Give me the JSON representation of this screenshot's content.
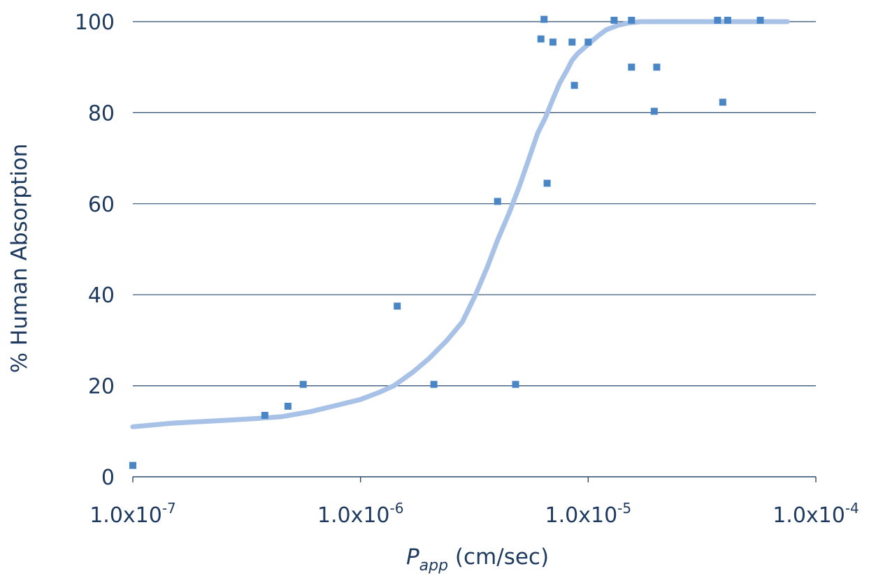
{
  "chart_data": {
    "type": "scatter",
    "title": "",
    "xlabel": {
      "main": "P",
      "subscript": "app",
      "unit": " (cm/sec)"
    },
    "ylabel": "% Human Absorption",
    "x_scale": "log",
    "xlim": [
      1e-07,
      0.0001
    ],
    "ylim": [
      0,
      100
    ],
    "grid": "horizontal",
    "x_ticks": [
      {
        "value": 1e-07,
        "mantissa": "1.0x10",
        "exponent": "-7"
      },
      {
        "value": 1e-06,
        "mantissa": "1.0x10",
        "exponent": "-6"
      },
      {
        "value": 1e-05,
        "mantissa": "1.0x10",
        "exponent": "-5"
      },
      {
        "value": 0.0001,
        "mantissa": "1.0x10",
        "exponent": "-4"
      }
    ],
    "y_ticks": [
      {
        "value": 0,
        "label": "0"
      },
      {
        "value": 20,
        "label": "20"
      },
      {
        "value": 40,
        "label": "40"
      },
      {
        "value": 60,
        "label": "60"
      },
      {
        "value": 80,
        "label": "80"
      },
      {
        "value": 100,
        "label": "100"
      }
    ],
    "colors": {
      "points": "#4a86c5",
      "curve": "#a8c1e6",
      "grid": "#2b4a6e",
      "text": "#1f3a5f"
    },
    "series": [
      {
        "kind": "points",
        "x": [
          1e-07,
          3.8e-07,
          4.8e-07,
          5.6e-07,
          1.45e-06,
          2.1e-06,
          4e-06,
          4.8e-06,
          6.2e-06,
          6.4e-06,
          6.6e-06,
          7e-06,
          8.5e-06,
          8.7e-06,
          1e-05,
          1.3e-05,
          1.55e-05,
          1.55e-05,
          1.95e-05,
          2e-05,
          3.7e-05,
          3.9e-05,
          4.1e-05,
          5.7e-05
        ],
        "y": [
          2.5,
          13.5,
          15.5,
          20.3,
          37.5,
          20.3,
          60.5,
          20.3,
          96.2,
          100.5,
          64.5,
          95.5,
          95.5,
          86,
          95.5,
          100.3,
          90,
          100.3,
          80.3,
          90,
          100.3,
          82.3,
          100.3,
          100.3
        ]
      },
      {
        "kind": "fit",
        "x": [
          1e-07,
          1.5e-07,
          2.5e-07,
          3.5e-07,
          4.5e-07,
          6e-07,
          8e-07,
          1e-06,
          1.2e-06,
          1.4e-06,
          1.7e-06,
          2e-06,
          2.4e-06,
          2.8e-06,
          3.2e-06,
          3.6e-06,
          4e-06,
          4.5e-06,
          5e-06,
          5.5e-06,
          6e-06,
          6.5e-06,
          7e-06,
          7.5e-06,
          8e-06,
          8.5e-06,
          9e-06,
          1e-05,
          1.1e-05,
          1.2e-05,
          1.35e-05,
          1.5e-05,
          1.7e-05,
          2e-05,
          3e-05,
          5e-05,
          7.5e-05
        ],
        "y": [
          11,
          11.8,
          12.4,
          12.8,
          13.2,
          14.3,
          15.8,
          17,
          18.5,
          20,
          23,
          26,
          30,
          34,
          40,
          46,
          52,
          58,
          64,
          70,
          75.5,
          79,
          83,
          86.5,
          89,
          91.5,
          93,
          95,
          96.8,
          98.2,
          99.2,
          99.7,
          100,
          100,
          100,
          100,
          100
        ]
      }
    ]
  }
}
